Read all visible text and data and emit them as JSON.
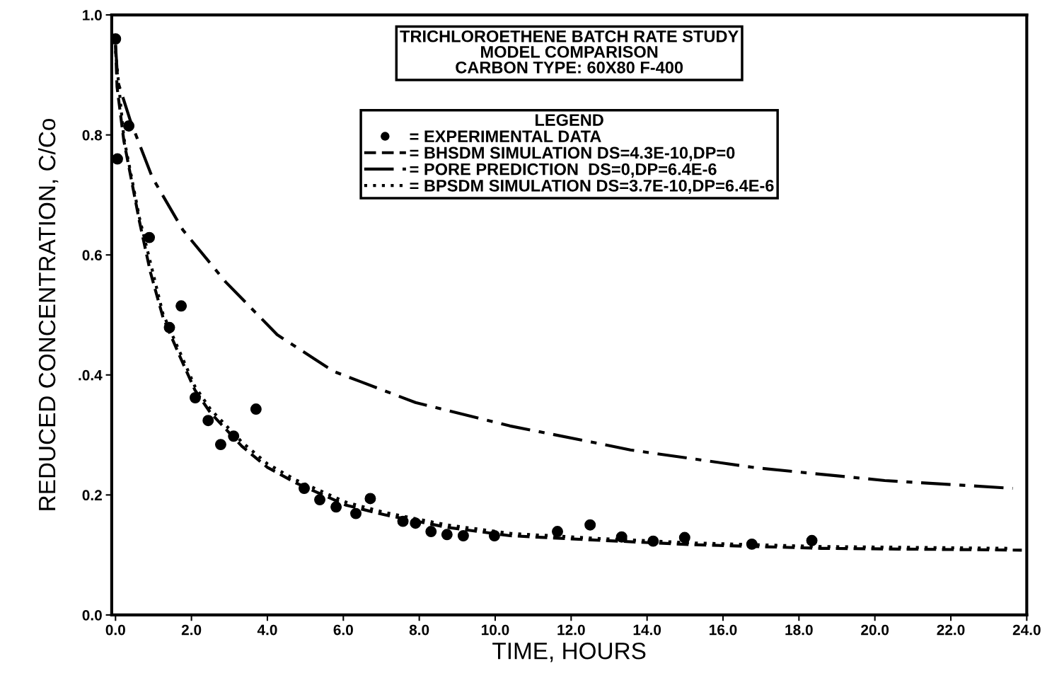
{
  "chart_data": {
    "type": "line",
    "title": "TRICHLOROETHENE BATCH RATE STUDY\nMODEL COMPARISON\nCARBON TYPE: 60X80 F-400",
    "xlabel": "TIME, HOURS",
    "ylabel": "REDUCED CONCENTRATION, C/Co",
    "legend_title": "LEGEND",
    "xlim": [
      -0.1,
      24
    ],
    "ylim": [
      0,
      1.0
    ],
    "xticks": [
      {
        "value": 0,
        "label": "0.0"
      },
      {
        "value": 2,
        "label": "2.0"
      },
      {
        "value": 4,
        "label": "4.0"
      },
      {
        "value": 6,
        "label": "6.0"
      },
      {
        "value": 8,
        "label": "8.0"
      },
      {
        "value": 10,
        "label": "10.0"
      },
      {
        "value": 12,
        "label": "12.0"
      },
      {
        "value": 14,
        "label": "14.0"
      },
      {
        "value": 16,
        "label": "16.0"
      },
      {
        "value": 18,
        "label": "18.0"
      },
      {
        "value": 20,
        "label": "20.0"
      },
      {
        "value": 22,
        "label": "22.0"
      },
      {
        "value": 24,
        "label": "24.0"
      }
    ],
    "yticks": [
      {
        "value": 0,
        "label": "0.0"
      },
      {
        "value": 0.2,
        "label": "0.2"
      },
      {
        "value": 0.4,
        "label": ".0.4"
      },
      {
        "value": 0.6,
        "label": "0.6"
      },
      {
        "value": 0.8,
        "label": "0.8"
      },
      {
        "value": 1.0,
        "label": "1.0"
      }
    ],
    "grid": false,
    "legend": "top",
    "series": [
      {
        "name": "= EXPERIMENTAL DATA",
        "type": "scatter",
        "marker": "circle",
        "color": "#000000",
        "x": [
          0.0,
          0.05,
          0.35,
          0.89,
          1.42,
          1.73,
          2.1,
          2.44,
          2.77,
          3.11,
          3.7,
          4.97,
          5.38,
          5.81,
          6.33,
          6.71,
          7.57,
          7.9,
          8.31,
          8.73,
          9.16,
          9.98,
          11.64,
          12.5,
          13.33,
          14.16,
          14.99,
          16.76,
          18.34
        ],
        "values": [
          0.96,
          0.76,
          0.815,
          0.629,
          0.479,
          0.515,
          0.362,
          0.324,
          0.284,
          0.298,
          0.343,
          0.211,
          0.192,
          0.18,
          0.169,
          0.194,
          0.156,
          0.153,
          0.139,
          0.134,
          0.132,
          0.132,
          0.139,
          0.15,
          0.13,
          0.123,
          0.129,
          0.118,
          0.124
        ]
      },
      {
        "name": "= BHSDM SIMULATION DS=4.3E-10,DP=0",
        "line_style": "dashed",
        "color": "#000000",
        "x": [
          0.0,
          0.04,
          0.22,
          0.63,
          0.92,
          1.25,
          1.68,
          2.09,
          2.5,
          3.33,
          4.0,
          4.75,
          6.07,
          7.08,
          8.73,
          10.4,
          12.55,
          15.23,
          18.58,
          23.87
        ],
        "values": [
          0.95,
          0.88,
          0.79,
          0.656,
          0.571,
          0.496,
          0.433,
          0.375,
          0.337,
          0.281,
          0.246,
          0.22,
          0.183,
          0.167,
          0.146,
          0.132,
          0.125,
          0.117,
          0.111,
          0.108
        ]
      },
      {
        "name": "= PORE PREDICTION  DS=0,DP=6.4E-6",
        "line_style": "dashdot",
        "color": "#000000",
        "x": [
          0.0,
          0.06,
          0.39,
          0.97,
          1.77,
          2.9,
          4.26,
          5.74,
          7.9,
          10.39,
          12.55,
          13.56,
          16.9,
          20.26,
          23.63
        ],
        "values": [
          0.95,
          0.889,
          0.824,
          0.729,
          0.642,
          0.555,
          0.467,
          0.406,
          0.354,
          0.315,
          0.288,
          0.275,
          0.245,
          0.224,
          0.211
        ]
      },
      {
        "name": "= BPSDM SIMULATION DS=3.7E-10,DP=6.4E-6",
        "line_style": "dotted",
        "color": "#000000",
        "x": [
          0.0,
          0.22,
          0.63,
          1.25,
          2.09,
          2.5,
          3.33,
          4.0,
          4.75,
          6.07,
          7.08,
          8.73,
          10.4,
          12.55,
          15.23,
          18.58,
          23.6
        ],
        "values": [
          0.94,
          0.795,
          0.662,
          0.502,
          0.381,
          0.343,
          0.288,
          0.252,
          0.225,
          0.188,
          0.171,
          0.15,
          0.136,
          0.128,
          0.12,
          0.114,
          0.111
        ]
      }
    ]
  }
}
